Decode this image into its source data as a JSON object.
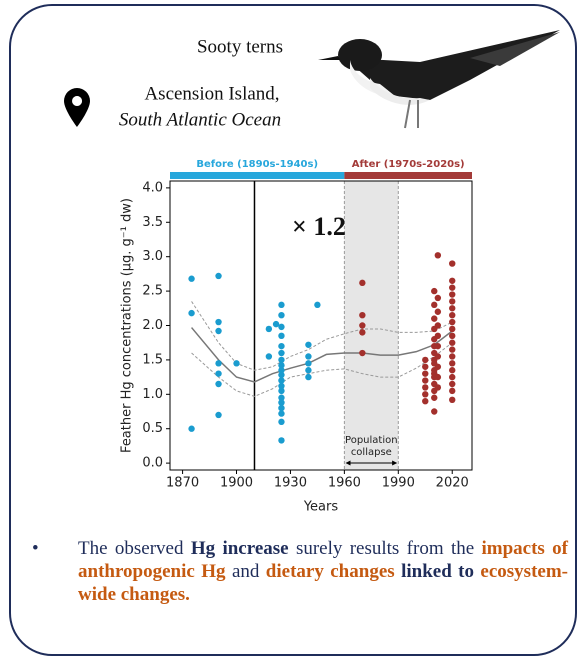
{
  "header": {
    "species": "Sooty terns",
    "location": "Ascension Island,",
    "region": "South Atlantic Ocean"
  },
  "chart_data": {
    "type": "scatter",
    "y_label": "Feather Hg concentrations (µg. g⁻¹ dw)",
    "x_label": "Years",
    "xlim": [
      1863,
      2031
    ],
    "ylim": [
      -0.1,
      4.1
    ],
    "xticks": [
      1870,
      1900,
      1930,
      1960,
      1990,
      2020
    ],
    "yticks": [
      {
        "value": 0,
        "label": "0.0"
      },
      0.5,
      {
        "value": 1,
        "label": "1.0"
      },
      1.5,
      {
        "value": 2,
        "label": "2.0"
      },
      2.5,
      {
        "value": 3,
        "label": "3.0"
      },
      3.5,
      {
        "value": 4,
        "label": "4.0"
      }
    ],
    "periods": [
      {
        "label": "Before (1890s-1940s)",
        "range": [
          1863,
          1960
        ],
        "color": "#27a7dc"
      },
      {
        "label": "After (1970s-2020s)",
        "range": [
          1960,
          2031
        ],
        "color": "#a33a38"
      }
    ],
    "reference_x": 1910,
    "annotation": "× 1.2",
    "shaded": {
      "range": [
        1960,
        1990
      ],
      "label_lines": [
        "Population",
        "collapse"
      ]
    },
    "series": [
      {
        "color": "#1a9ccf",
        "x": [
          1875,
          1875,
          1875,
          1890,
          1890,
          1890,
          1890,
          1890,
          1890,
          1890,
          1900,
          1918,
          1918,
          1922,
          1925,
          1925,
          1925,
          1925,
          1925,
          1925,
          1925,
          1925,
          1925,
          1925,
          1925,
          1925,
          1925,
          1925,
          1925,
          1925,
          1925,
          1925,
          1925,
          1940,
          1940,
          1940,
          1940,
          1940,
          1945
        ],
        "values": [
          2.68,
          2.18,
          0.5,
          2.72,
          2.05,
          1.92,
          1.45,
          1.3,
          1.15,
          0.7,
          1.45,
          1.95,
          1.55,
          2.02,
          2.3,
          2.15,
          1.98,
          1.85,
          1.7,
          1.6,
          1.5,
          1.42,
          1.35,
          1.28,
          1.2,
          1.12,
          1.05,
          0.95,
          0.88,
          0.8,
          0.72,
          0.6,
          0.33,
          1.72,
          1.55,
          1.45,
          1.35,
          1.25,
          2.3
        ]
      },
      {
        "color": "#a3302c",
        "x": [
          1970,
          1970,
          1970,
          1970,
          1970,
          2005,
          2005,
          2005,
          2005,
          2005,
          2005,
          2005,
          2010,
          2010,
          2010,
          2010,
          2010,
          2010,
          2010,
          2010,
          2010,
          2010,
          2010,
          2010,
          2010,
          2010,
          2010,
          2010,
          2012,
          2012,
          2012,
          2012,
          2012,
          2012,
          2012,
          2012,
          2012,
          2012,
          2020,
          2020,
          2020,
          2020,
          2020,
          2020,
          2020,
          2020,
          2020,
          2020,
          2020,
          2020,
          2020,
          2020,
          2020,
          2020,
          2020,
          2020,
          2020
        ],
        "values": [
          2.62,
          2.15,
          2.0,
          1.9,
          1.6,
          1.5,
          1.4,
          1.3,
          1.2,
          1.1,
          1.0,
          0.9,
          2.5,
          2.3,
          2.1,
          1.95,
          1.8,
          1.7,
          1.6,
          1.5,
          1.45,
          1.35,
          1.3,
          1.25,
          1.15,
          1.05,
          0.95,
          0.75,
          3.02,
          2.4,
          2.2,
          2.0,
          1.85,
          1.7,
          1.55,
          1.4,
          1.25,
          1.1,
          2.9,
          2.65,
          2.55,
          2.45,
          2.35,
          2.25,
          2.15,
          2.05,
          1.95,
          1.85,
          1.75,
          1.65,
          1.55,
          1.45,
          1.35,
          1.25,
          1.15,
          1.05,
          0.92
        ]
      }
    ],
    "trend": {
      "x": [
        1875,
        1890,
        1900,
        1910,
        1920,
        1930,
        1940,
        1950,
        1960,
        1970,
        1980,
        1990,
        2000,
        2010,
        2020
      ],
      "values": [
        1.97,
        1.5,
        1.25,
        1.18,
        1.3,
        1.38,
        1.45,
        1.58,
        1.6,
        1.6,
        1.57,
        1.57,
        1.62,
        1.72,
        1.92
      ],
      "upper": [
        2.35,
        1.75,
        1.45,
        1.35,
        1.4,
        1.55,
        1.65,
        1.8,
        1.88,
        1.95,
        1.95,
        1.9,
        1.9,
        1.92,
        2.05
      ],
      "lower": [
        1.6,
        1.25,
        1.05,
        0.97,
        1.08,
        1.25,
        1.3,
        1.35,
        1.37,
        1.3,
        1.25,
        1.25,
        1.38,
        1.55,
        1.75
      ]
    }
  },
  "note": {
    "segments": [
      {
        "text": "The observed ",
        "color": "#1f2d5a",
        "bold": false
      },
      {
        "text": "Hg increase",
        "color": "#1f2d5a",
        "bold": true
      },
      {
        "text": " surely results from the ",
        "color": "#1f2d5a",
        "bold": false
      },
      {
        "text": "impacts of anthropogenic Hg",
        "color": "#c55a11",
        "bold": true
      },
      {
        "text": " and ",
        "color": "#1f2d5a",
        "bold": false
      },
      {
        "text": "dietary changes",
        "color": "#c55a11",
        "bold": true
      },
      {
        "text": " linked to ",
        "color": "#1f2d5a",
        "bold": true
      },
      {
        "text": "ecosystem-wide changes.",
        "color": "#c55a11",
        "bold": true
      }
    ]
  }
}
